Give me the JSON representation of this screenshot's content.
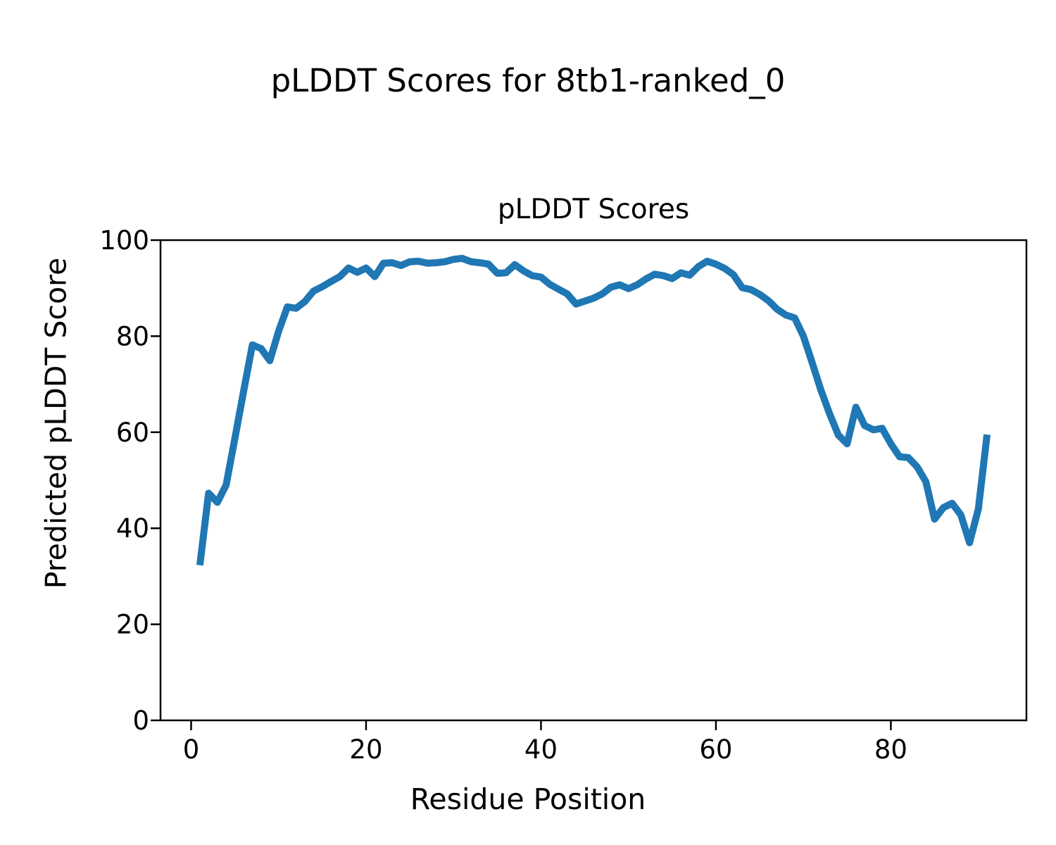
{
  "figure": {
    "suptitle": "pLDDT Scores for 8tb1-ranked_0"
  },
  "chart_data": {
    "type": "line",
    "title": "pLDDT Scores",
    "xlabel": "Residue Position",
    "ylabel": "Predicted pLDDT Score",
    "grid": false,
    "legend": null,
    "xlim": [
      -3.5,
      95.5
    ],
    "ylim": [
      0,
      100
    ],
    "xticks": [
      0,
      20,
      40,
      60,
      80
    ],
    "yticks": [
      0,
      20,
      40,
      60,
      80,
      100
    ],
    "line_color": "#1f77b4",
    "axis_color": "#000000",
    "series": [
      {
        "name": "pLDDT",
        "color": "#1f77b4",
        "x": [
          1,
          2,
          3,
          4,
          5,
          6,
          7,
          8,
          9,
          10,
          11,
          12,
          13,
          14,
          15,
          16,
          17,
          18,
          19,
          20,
          21,
          22,
          23,
          24,
          25,
          26,
          27,
          28,
          29,
          30,
          31,
          32,
          33,
          34,
          35,
          36,
          37,
          38,
          39,
          40,
          41,
          42,
          43,
          44,
          45,
          46,
          47,
          48,
          49,
          50,
          51,
          52,
          53,
          54,
          55,
          56,
          57,
          58,
          59,
          60,
          61,
          62,
          63,
          64,
          65,
          66,
          67,
          68,
          69,
          70,
          71,
          72,
          73,
          74,
          75,
          76,
          77,
          78,
          79,
          80,
          81,
          82,
          83,
          84,
          85,
          86,
          87,
          88,
          89,
          90,
          91
        ],
        "values": [
          32.3,
          47.3,
          45.4,
          49.0,
          58.7,
          68.5,
          78.2,
          77.4,
          74.9,
          81.0,
          86.1,
          85.8,
          87.2,
          89.4,
          90.3,
          91.4,
          92.4,
          94.2,
          93.3,
          94.2,
          92.4,
          95.2,
          95.3,
          94.7,
          95.5,
          95.6,
          95.2,
          95.3,
          95.5,
          96.0,
          96.2,
          95.5,
          95.3,
          95.0,
          93.1,
          93.2,
          94.9,
          93.6,
          92.6,
          92.3,
          90.8,
          89.8,
          88.8,
          86.7,
          87.3,
          87.9,
          88.8,
          90.2,
          90.7,
          89.9,
          90.7,
          91.9,
          92.9,
          92.6,
          92.0,
          93.2,
          92.7,
          94.5,
          95.6,
          95.0,
          94.1,
          92.8,
          90.1,
          89.7,
          88.7,
          87.4,
          85.6,
          84.4,
          83.8,
          80.0,
          74.5,
          68.8,
          63.8,
          59.4,
          57.6,
          65.2,
          61.4,
          60.5,
          60.8,
          57.6,
          54.9,
          54.7,
          52.8,
          49.7,
          41.9,
          44.3,
          45.2,
          42.8,
          37.0,
          44.0,
          59.5
        ]
      }
    ]
  }
}
